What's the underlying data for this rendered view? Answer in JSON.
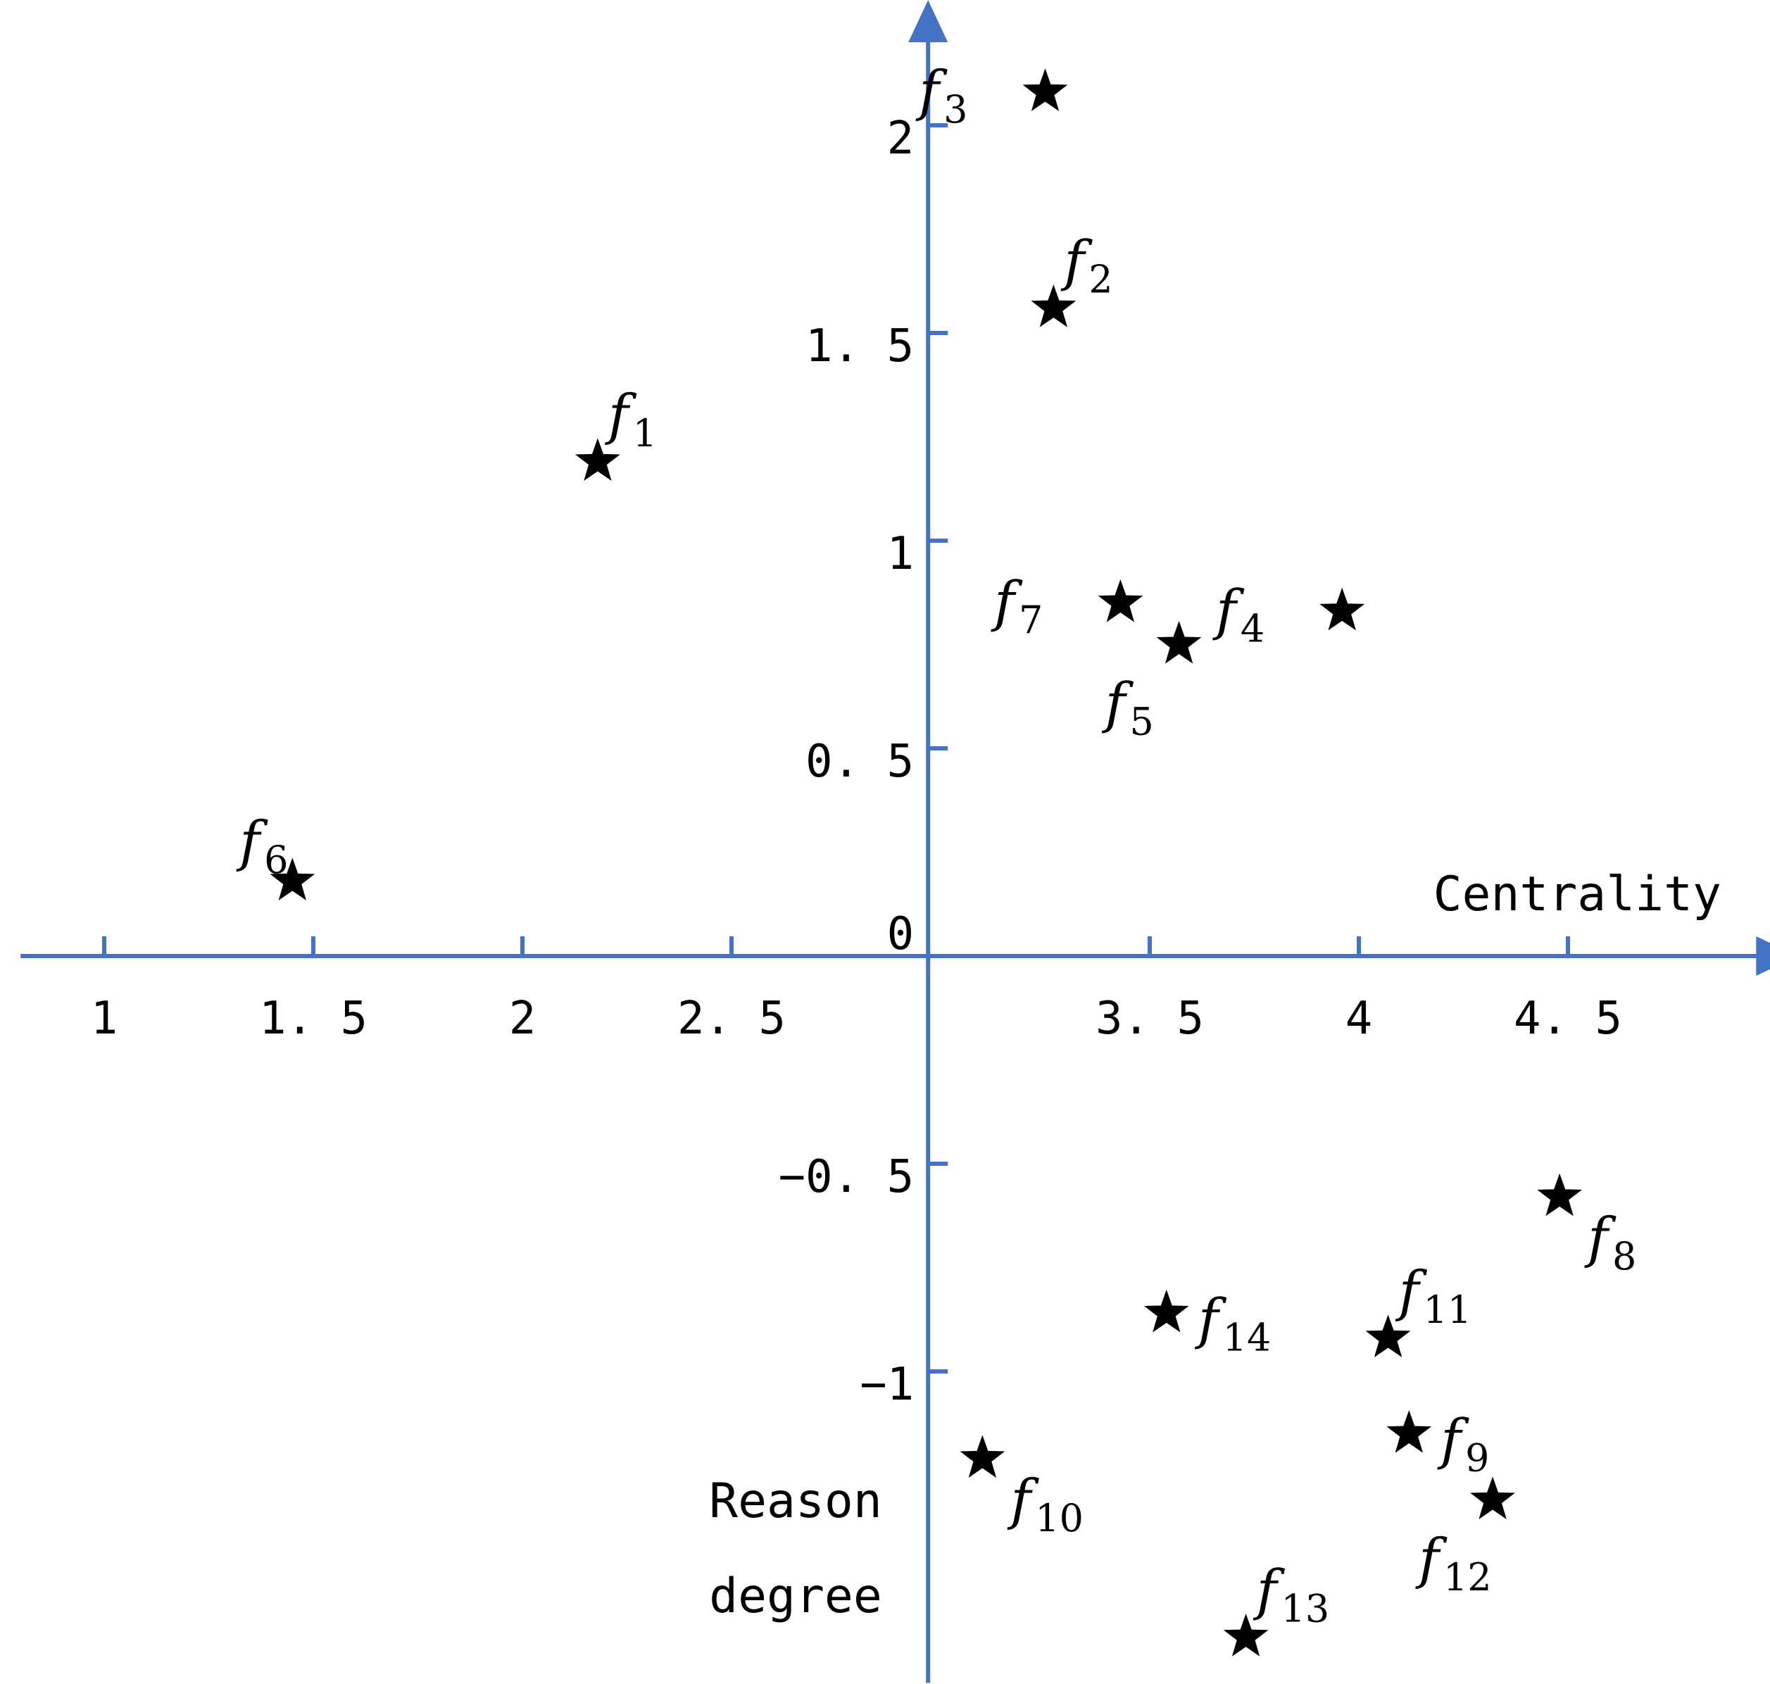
{
  "chart_data": {
    "type": "scatter",
    "xlabel": "Centrality",
    "ylabel_lines": [
      "Reason",
      "degree"
    ],
    "xlim": [
      0.8,
      4.95
    ],
    "ylim": [
      -1.75,
      2.2
    ],
    "y_axis_at_x": 2.97,
    "x_ticks": [
      {
        "value": 1,
        "label": "1"
      },
      {
        "value": 1.5,
        "label": "1. 5"
      },
      {
        "value": 2,
        "label": "2"
      },
      {
        "value": 2.5,
        "label": "2. 5"
      },
      {
        "value": 3.5,
        "label": "3. 5"
      },
      {
        "value": 4,
        "label": "4"
      },
      {
        "value": 4.5,
        "label": "4. 5"
      }
    ],
    "y_ticks": [
      {
        "value": 2,
        "label": "2"
      },
      {
        "value": 1.5,
        "label": "1. 5"
      },
      {
        "value": 1,
        "label": "1"
      },
      {
        "value": 0.5,
        "label": "0. 5"
      },
      {
        "value": 0,
        "label": "0"
      },
      {
        "value": -0.5,
        "label": "−0. 5"
      },
      {
        "value": -1,
        "label": "−1"
      }
    ],
    "grid": false,
    "points": [
      {
        "name": "f1",
        "base": "f",
        "sub": "1",
        "x": 2.18,
        "y": 1.19,
        "label_pos": "top-right"
      },
      {
        "name": "f2",
        "base": "f",
        "sub": "2",
        "x": 3.27,
        "y": 1.56,
        "label_pos": "top-right"
      },
      {
        "name": "f3",
        "base": "f",
        "sub": "3",
        "x": 3.25,
        "y": 2.08,
        "label_pos": "left"
      },
      {
        "name": "f4",
        "base": "f",
        "sub": "4",
        "x": 3.96,
        "y": 0.83,
        "label_pos": "left"
      },
      {
        "name": "f5",
        "base": "f",
        "sub": "5",
        "x": 3.57,
        "y": 0.75,
        "label_pos": "bottom-left"
      },
      {
        "name": "f6",
        "base": "f",
        "sub": "6",
        "x": 1.45,
        "y": 0.18,
        "label_pos": "top-left"
      },
      {
        "name": "f7",
        "base": "f",
        "sub": "7",
        "x": 3.43,
        "y": 0.85,
        "label_pos": "left"
      },
      {
        "name": "f8",
        "base": "f",
        "sub": "8",
        "x": 4.48,
        "y": -0.58,
        "label_pos": "bottom-right"
      },
      {
        "name": "f9",
        "base": "f",
        "sub": "9",
        "x": 4.12,
        "y": -1.15,
        "label_pos": "right"
      },
      {
        "name": "f10",
        "base": "f",
        "sub": "10",
        "x": 3.1,
        "y": -1.21,
        "label_pos": "bottom-right"
      },
      {
        "name": "f11",
        "base": "f",
        "sub": "11",
        "x": 4.07,
        "y": -0.92,
        "label_pos": "top-right"
      },
      {
        "name": "f12",
        "base": "f",
        "sub": "12",
        "x": 4.32,
        "y": -1.31,
        "label_pos": "bottom-left"
      },
      {
        "name": "f13",
        "base": "f",
        "sub": "13",
        "x": 3.73,
        "y": -1.64,
        "label_pos": "top-right"
      },
      {
        "name": "f14",
        "base": "f",
        "sub": "14",
        "x": 3.54,
        "y": -0.86,
        "label_pos": "right"
      }
    ]
  }
}
